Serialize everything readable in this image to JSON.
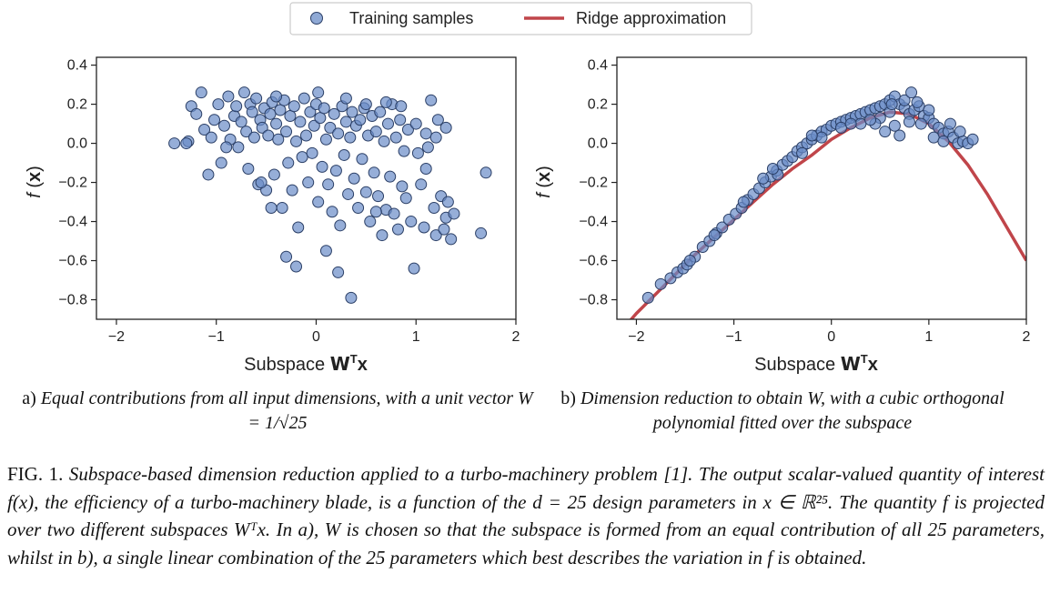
{
  "legend": {
    "samples_label": "Training samples",
    "ridge_label": "Ridge approximation",
    "sample_color": "#6a8cc7",
    "sample_edge": "#2b3f66",
    "ridge_color": "#c0454a"
  },
  "panels": [
    {
      "ylabel": "f (x)",
      "xlabel": "Subspace Wᵀx",
      "caption_tag": "a)",
      "caption_text": "Equal contributions from all input dimensions, with a unit vector W = 1/√25"
    },
    {
      "ylabel": "f (x)",
      "xlabel": "Subspace Wᵀx",
      "caption_tag": "b)",
      "caption_text": "Dimension reduction to obtain W, with a cubic orthogonal polynomial fitted over the subspace"
    }
  ],
  "figure_caption": {
    "label": "FIG. 1.",
    "text": "Subspace-based dimension reduction applied to a turbo-machinery problem [1]. The output scalar-valued quantity of interest f(x), the efficiency of a turbo-machinery blade, is a function of the d = 25 design parameters in x ∈ ℝ²⁵. The quantity f is projected over two different subspaces Wᵀx. In a), W is chosen so that the subspace is formed from an equal contribution of all 25 parameters, whilst in b), a single linear combination of the 25 parameters which best describes the variation in f is obtained."
  },
  "chart_data": [
    {
      "type": "scatter",
      "title": "",
      "xlabel": "Subspace Wᵀx",
      "ylabel": "f (x)",
      "xlim": [
        -2.2,
        2.0
      ],
      "ylim": [
        -0.9,
        0.44
      ],
      "xticks": [
        -2,
        -1,
        0,
        1,
        2
      ],
      "yticks": [
        0.4,
        0.2,
        0.0,
        -0.2,
        -0.4,
        -0.6,
        -0.8
      ],
      "grid": false,
      "series": [
        {
          "name": "Training samples",
          "points": [
            [
              -1.42,
              0.0
            ],
            [
              -1.28,
              0.01
            ],
            [
              -1.25,
              0.19
            ],
            [
              -1.2,
              0.15
            ],
            [
              -1.15,
              0.26
            ],
            [
              -1.12,
              0.07
            ],
            [
              -1.08,
              -0.16
            ],
            [
              -1.05,
              0.03
            ],
            [
              -1.02,
              0.12
            ],
            [
              -0.98,
              0.2
            ],
            [
              -0.95,
              -0.1
            ],
            [
              -0.92,
              0.09
            ],
            [
              -0.88,
              0.24
            ],
            [
              -0.86,
              0.02
            ],
            [
              -0.82,
              0.14
            ],
            [
              -0.8,
              0.19
            ],
            [
              -0.78,
              -0.02
            ],
            [
              -0.75,
              0.11
            ],
            [
              -0.72,
              0.26
            ],
            [
              -0.7,
              0.06
            ],
            [
              -0.68,
              -0.13
            ],
            [
              -0.66,
              0.2
            ],
            [
              -0.64,
              0.16
            ],
            [
              -0.62,
              0.03
            ],
            [
              -0.6,
              0.23
            ],
            [
              -0.58,
              -0.21
            ],
            [
              -0.56,
              0.12
            ],
            [
              -0.54,
              0.08
            ],
            [
              -0.52,
              0.18
            ],
            [
              -0.5,
              -0.24
            ],
            [
              -0.48,
              0.04
            ],
            [
              -0.46,
              0.15
            ],
            [
              -0.44,
              0.21
            ],
            [
              -0.42,
              -0.16
            ],
            [
              -0.4,
              0.1
            ],
            [
              -0.38,
              0.02
            ],
            [
              -0.36,
              0.17
            ],
            [
              -0.34,
              -0.33
            ],
            [
              -0.32,
              0.22
            ],
            [
              -0.3,
              0.06
            ],
            [
              -0.28,
              -0.1
            ],
            [
              -0.26,
              0.14
            ],
            [
              -0.24,
              -0.24
            ],
            [
              -0.22,
              0.19
            ],
            [
              -0.2,
              0.01
            ],
            [
              -0.18,
              -0.43
            ],
            [
              -0.16,
              0.11
            ],
            [
              -0.14,
              -0.07
            ],
            [
              -0.12,
              0.23
            ],
            [
              -0.1,
              0.04
            ],
            [
              -0.08,
              -0.2
            ],
            [
              -0.06,
              0.16
            ],
            [
              -0.04,
              -0.05
            ],
            [
              -0.02,
              0.09
            ],
            [
              0.0,
              0.2
            ],
            [
              0.02,
              -0.3
            ],
            [
              0.04,
              0.13
            ],
            [
              0.06,
              -0.12
            ],
            [
              0.08,
              0.18
            ],
            [
              0.1,
              0.02
            ],
            [
              0.12,
              -0.21
            ],
            [
              0.14,
              0.08
            ],
            [
              0.16,
              -0.35
            ],
            [
              0.18,
              0.15
            ],
            [
              0.2,
              -0.14
            ],
            [
              0.22,
              0.05
            ],
            [
              0.24,
              -0.42
            ],
            [
              0.26,
              0.19
            ],
            [
              0.28,
              -0.06
            ],
            [
              0.3,
              0.11
            ],
            [
              0.32,
              -0.26
            ],
            [
              0.34,
              0.03
            ],
            [
              0.36,
              0.16
            ],
            [
              0.38,
              -0.18
            ],
            [
              0.4,
              0.09
            ],
            [
              0.42,
              -0.33
            ],
            [
              0.44,
              0.12
            ],
            [
              0.46,
              -0.08
            ],
            [
              0.48,
              0.18
            ],
            [
              0.5,
              -0.25
            ],
            [
              0.52,
              0.04
            ],
            [
              0.54,
              -0.4
            ],
            [
              0.56,
              0.14
            ],
            [
              0.58,
              -0.15
            ],
            [
              0.6,
              0.06
            ],
            [
              0.62,
              -0.27
            ],
            [
              0.64,
              0.16
            ],
            [
              0.66,
              -0.47
            ],
            [
              0.68,
              0.01
            ],
            [
              0.7,
              -0.34
            ],
            [
              0.72,
              0.1
            ],
            [
              0.74,
              -0.17
            ],
            [
              0.76,
              0.2
            ],
            [
              0.78,
              -0.36
            ],
            [
              0.8,
              0.03
            ],
            [
              0.82,
              -0.44
            ],
            [
              0.84,
              0.12
            ],
            [
              0.86,
              -0.22
            ],
            [
              0.88,
              -0.04
            ],
            [
              0.9,
              -0.28
            ],
            [
              0.92,
              0.07
            ],
            [
              0.95,
              -0.4
            ],
            [
              0.98,
              -0.64
            ],
            [
              1.02,
              -0.05
            ],
            [
              1.05,
              -0.21
            ],
            [
              1.08,
              -0.43
            ],
            [
              1.1,
              -0.13
            ],
            [
              1.12,
              -0.02
            ],
            [
              1.15,
              0.22
            ],
            [
              1.18,
              -0.33
            ],
            [
              1.2,
              -0.47
            ],
            [
              1.22,
              0.12
            ],
            [
              1.25,
              -0.27
            ],
            [
              1.28,
              -0.44
            ],
            [
              1.3,
              -0.38
            ],
            [
              1.32,
              -0.3
            ],
            [
              1.35,
              -0.49
            ],
            [
              1.38,
              -0.36
            ],
            [
              1.65,
              -0.46
            ],
            [
              1.7,
              -0.15
            ],
            [
              -1.3,
              0.0
            ],
            [
              -0.9,
              -0.02
            ],
            [
              -0.3,
              -0.58
            ],
            [
              -0.2,
              -0.63
            ],
            [
              0.1,
              -0.55
            ],
            [
              0.22,
              -0.66
            ],
            [
              0.35,
              -0.79
            ],
            [
              -0.55,
              -0.2
            ],
            [
              -0.45,
              -0.33
            ],
            [
              0.6,
              -0.35
            ],
            [
              0.02,
              0.26
            ],
            [
              -0.4,
              0.24
            ],
            [
              0.3,
              0.23
            ],
            [
              0.5,
              0.2
            ],
            [
              0.7,
              0.21
            ],
            [
              0.85,
              0.19
            ],
            [
              1.0,
              0.1
            ],
            [
              1.1,
              0.05
            ],
            [
              1.2,
              0.03
            ],
            [
              1.3,
              0.08
            ]
          ]
        }
      ]
    },
    {
      "type": "scatter",
      "title": "",
      "xlabel": "Subspace Wᵀx",
      "ylabel": "f (x)",
      "xlim": [
        -2.2,
        2.0
      ],
      "ylim": [
        -0.9,
        0.44
      ],
      "xticks": [
        -2,
        -1,
        0,
        1,
        2
      ],
      "yticks": [
        0.4,
        0.2,
        0.0,
        -0.2,
        -0.4,
        -0.6,
        -0.8
      ],
      "grid": false,
      "series": [
        {
          "name": "Training samples",
          "points": [
            [
              -1.88,
              -0.79
            ],
            [
              -1.75,
              -0.72
            ],
            [
              -1.65,
              -0.69
            ],
            [
              -1.58,
              -0.66
            ],
            [
              -1.52,
              -0.64
            ],
            [
              -1.48,
              -0.62
            ],
            [
              -1.4,
              -0.58
            ],
            [
              -1.32,
              -0.53
            ],
            [
              -1.25,
              -0.5
            ],
            [
              -1.18,
              -0.46
            ],
            [
              -1.12,
              -0.43
            ],
            [
              -1.05,
              -0.39
            ],
            [
              -0.98,
              -0.36
            ],
            [
              -0.92,
              -0.33
            ],
            [
              -0.86,
              -0.29
            ],
            [
              -0.8,
              -0.26
            ],
            [
              -0.74,
              -0.23
            ],
            [
              -0.68,
              -0.2
            ],
            [
              -0.62,
              -0.17
            ],
            [
              -0.56,
              -0.14
            ],
            [
              -0.5,
              -0.11
            ],
            [
              -0.45,
              -0.09
            ],
            [
              -0.4,
              -0.07
            ],
            [
              -0.35,
              -0.04
            ],
            [
              -0.3,
              -0.02
            ],
            [
              -0.25,
              0.0
            ],
            [
              -0.2,
              0.02
            ],
            [
              -0.15,
              0.04
            ],
            [
              -0.1,
              0.06
            ],
            [
              -0.05,
              0.07
            ],
            [
              0.0,
              0.09
            ],
            [
              0.05,
              0.1
            ],
            [
              0.1,
              0.11
            ],
            [
              0.15,
              0.12
            ],
            [
              0.2,
              0.13
            ],
            [
              0.25,
              0.14
            ],
            [
              0.3,
              0.15
            ],
            [
              0.35,
              0.16
            ],
            [
              0.4,
              0.17
            ],
            [
              0.45,
              0.18
            ],
            [
              0.5,
              0.19
            ],
            [
              0.55,
              0.2
            ],
            [
              0.6,
              0.22
            ],
            [
              0.65,
              0.24
            ],
            [
              0.7,
              0.2
            ],
            [
              0.75,
              0.18
            ],
            [
              0.8,
              0.15
            ],
            [
              0.85,
              0.17
            ],
            [
              0.9,
              0.19
            ],
            [
              0.95,
              0.14
            ],
            [
              1.0,
              0.13
            ],
            [
              1.05,
              0.1
            ],
            [
              1.1,
              0.08
            ],
            [
              1.15,
              0.05
            ],
            [
              1.2,
              0.06
            ],
            [
              1.25,
              0.03
            ],
            [
              1.3,
              0.0
            ],
            [
              1.35,
              0.01
            ],
            [
              1.4,
              0.0
            ],
            [
              1.45,
              0.02
            ],
            [
              -0.9,
              -0.3
            ],
            [
              -0.7,
              -0.18
            ],
            [
              -0.55,
              -0.16
            ],
            [
              -0.3,
              -0.05
            ],
            [
              -0.1,
              0.03
            ],
            [
              0.1,
              0.08
            ],
            [
              0.3,
              0.1
            ],
            [
              0.5,
              0.13
            ],
            [
              0.6,
              0.16
            ],
            [
              0.75,
              0.22
            ],
            [
              0.82,
              0.26
            ],
            [
              0.88,
              0.21
            ],
            [
              0.65,
              0.09
            ],
            [
              0.7,
              0.04
            ],
            [
              0.55,
              0.06
            ],
            [
              0.45,
              0.1
            ],
            [
              0.92,
              0.1
            ],
            [
              1.05,
              0.03
            ],
            [
              1.15,
              0.01
            ],
            [
              1.32,
              0.06
            ],
            [
              -1.45,
              -0.6
            ],
            [
              -1.2,
              -0.47
            ],
            [
              -0.6,
              -0.13
            ],
            [
              -0.2,
              0.04
            ],
            [
              0.2,
              0.1
            ],
            [
              0.4,
              0.12
            ],
            [
              0.62,
              0.2
            ],
            [
              0.8,
              0.11
            ],
            [
              1.0,
              0.17
            ],
            [
              1.22,
              0.1
            ]
          ]
        },
        {
          "name": "Ridge approximation",
          "type": "line",
          "x": [
            -2.2,
            -2.0,
            -1.8,
            -1.6,
            -1.4,
            -1.2,
            -1.0,
            -0.8,
            -0.6,
            -0.4,
            -0.2,
            0.0,
            0.2,
            0.4,
            0.6,
            0.8,
            1.0,
            1.2,
            1.4,
            1.6,
            1.8,
            2.0
          ],
          "y": [
            -0.985,
            -0.87,
            -0.77,
            -0.67,
            -0.57,
            -0.48,
            -0.39,
            -0.3,
            -0.21,
            -0.13,
            -0.06,
            0.02,
            0.08,
            0.13,
            0.16,
            0.15,
            0.1,
            0.01,
            -0.11,
            -0.26,
            -0.43,
            -0.6
          ]
        }
      ]
    }
  ]
}
